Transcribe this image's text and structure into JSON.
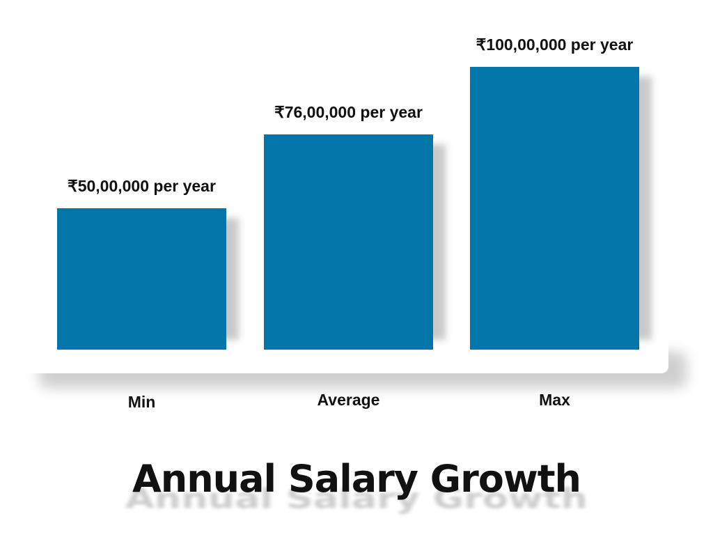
{
  "chart_data": {
    "type": "bar",
    "title": "Annual Salary Growth",
    "categories": [
      "Min",
      "Average",
      "Max"
    ],
    "values": [
      5000000,
      7600000,
      10000000
    ],
    "value_labels": [
      "₹50,00,000 per year",
      "₹76,00,000 per year",
      "₹100,00,000 per year"
    ],
    "ylim": [
      0,
      10000000
    ],
    "xlabel": "",
    "ylabel": "",
    "grid": false,
    "bar_color": "#0276a9",
    "text_color": "#111111"
  }
}
